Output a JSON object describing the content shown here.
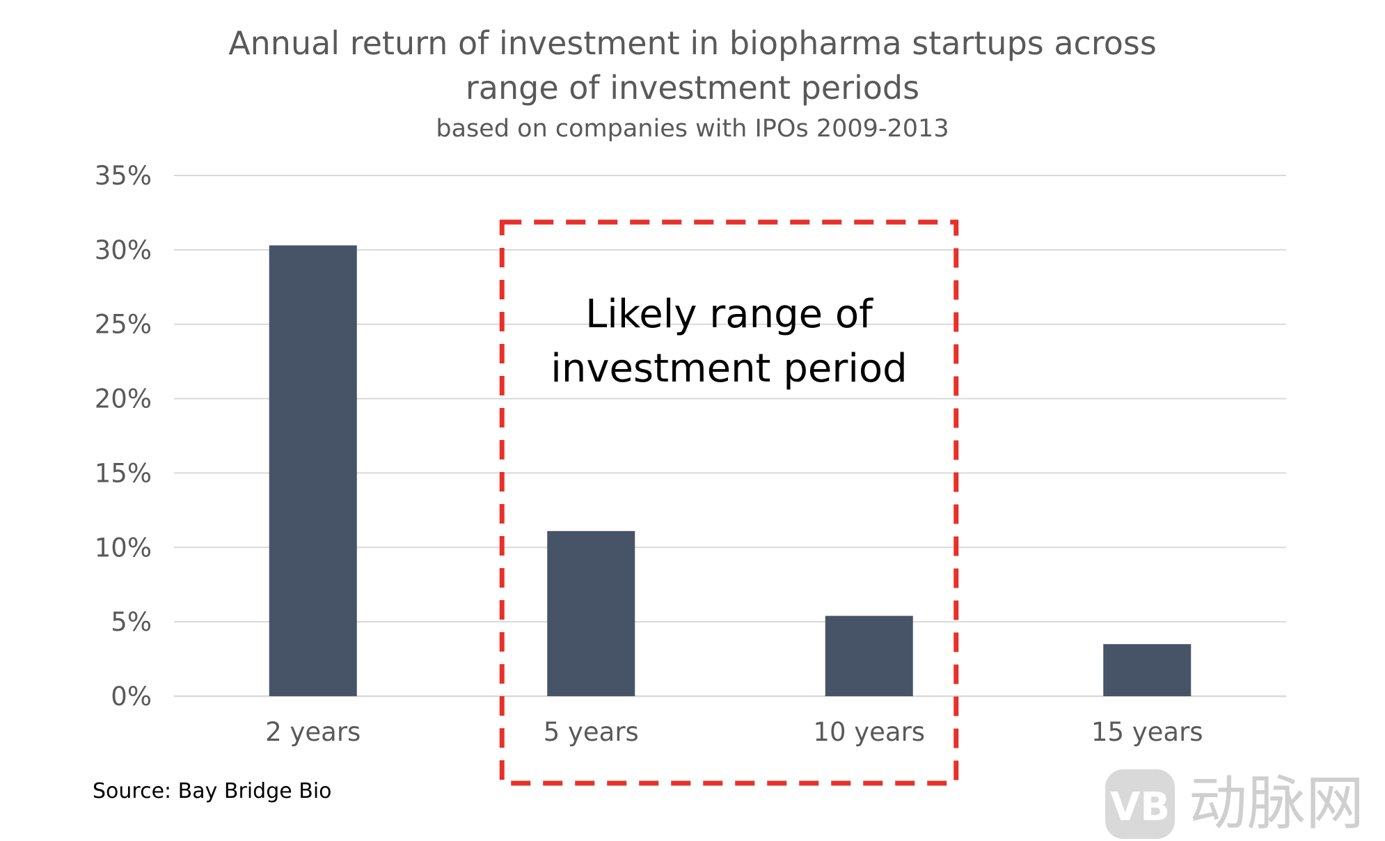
{
  "chart_data": {
    "type": "bar",
    "title_line1": "Annual return of investment in biopharma startups across",
    "title_line2": "range of investment periods",
    "subtitle": "based on companies with IPOs 2009-2013",
    "categories": [
      "2 years",
      "5 years",
      "10 years",
      "15 years"
    ],
    "values": [
      30.3,
      11.1,
      5.4,
      3.5
    ],
    "ylim": [
      0,
      35
    ],
    "yticks": [
      0,
      5,
      10,
      15,
      20,
      25,
      30,
      35
    ],
    "ytick_labels": [
      "0%",
      "5%",
      "10%",
      "15%",
      "20%",
      "25%",
      "30%",
      "35%"
    ],
    "grid": true,
    "highlight": {
      "from_category": "5 years",
      "to_category": "10 years",
      "label_line1": "Likely range of",
      "label_line2": "investment period"
    },
    "source": "Source: Bay Bridge Bio"
  },
  "watermark": {
    "logo_text": "VB",
    "text": "动脉网"
  },
  "colors": {
    "bar": "#475467",
    "grid": "#d9d9d9",
    "highlight": "#e8302a",
    "text": "#595959"
  }
}
